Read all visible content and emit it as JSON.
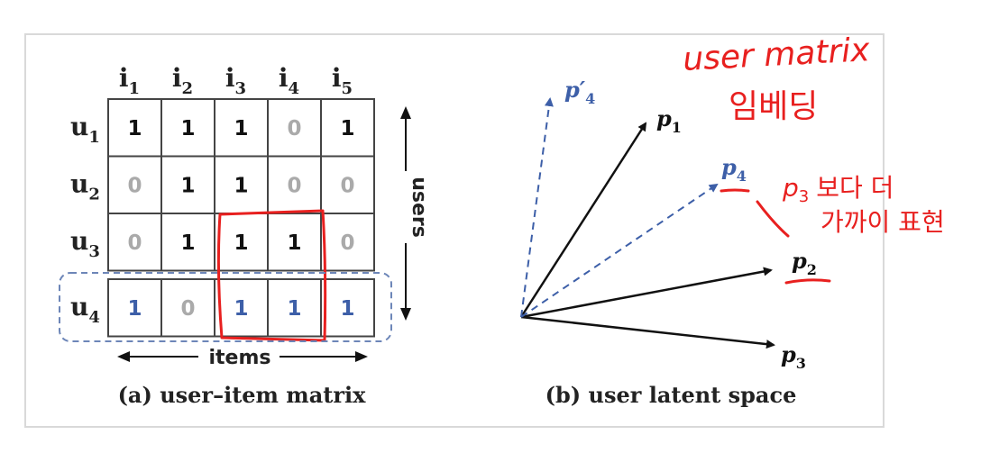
{
  "matrix": {
    "col_headers": [
      {
        "base": "i",
        "sub": "1"
      },
      {
        "base": "i",
        "sub": "2"
      },
      {
        "base": "i",
        "sub": "3"
      },
      {
        "base": "i",
        "sub": "4"
      },
      {
        "base": "i",
        "sub": "5"
      }
    ],
    "rows": [
      {
        "label": {
          "base": "u",
          "sub": "1"
        },
        "values": [
          "1",
          "1",
          "1",
          "0",
          "1"
        ],
        "highlighted": false
      },
      {
        "label": {
          "base": "u",
          "sub": "2"
        },
        "values": [
          "0",
          "1",
          "1",
          "0",
          "0"
        ],
        "highlighted": false
      },
      {
        "label": {
          "base": "u",
          "sub": "3"
        },
        "values": [
          "0",
          "1",
          "1",
          "1",
          "0"
        ],
        "highlighted": false
      },
      {
        "label": {
          "base": "u",
          "sub": "4"
        },
        "values": [
          "1",
          "0",
          "1",
          "1",
          "1"
        ],
        "highlighted": true
      }
    ],
    "users_label": "users",
    "items_label": "items",
    "caption": "(a) user–item matrix"
  },
  "latent": {
    "caption": "(b) user latent space",
    "vectors": [
      {
        "base": "p",
        "sub": "1",
        "prime": "",
        "style": "solid",
        "color": "#111111"
      },
      {
        "base": "p",
        "sub": "2",
        "prime": "",
        "style": "solid",
        "color": "#111111"
      },
      {
        "base": "p",
        "sub": "3",
        "prime": "",
        "style": "solid",
        "color": "#111111"
      },
      {
        "base": "p",
        "sub": "4",
        "prime": "",
        "style": "dashed",
        "color": "#3d5fa8"
      },
      {
        "base": "p",
        "sub": "4",
        "prime": "′",
        "style": "dashed",
        "color": "#3d5fa8"
      }
    ]
  },
  "annotations": {
    "title_line1": "user matrix",
    "title_line2": "임베딩",
    "note_prefix": "p",
    "note_sub": "3",
    "note_line1_suffix": "보다 더",
    "note_line2": "가까이 표현"
  },
  "colors": {
    "one": "#111111",
    "zero": "#aaaaaa",
    "highlight": "#3d5fa8",
    "handwriting": "#e8201f",
    "grid": "#444444"
  }
}
